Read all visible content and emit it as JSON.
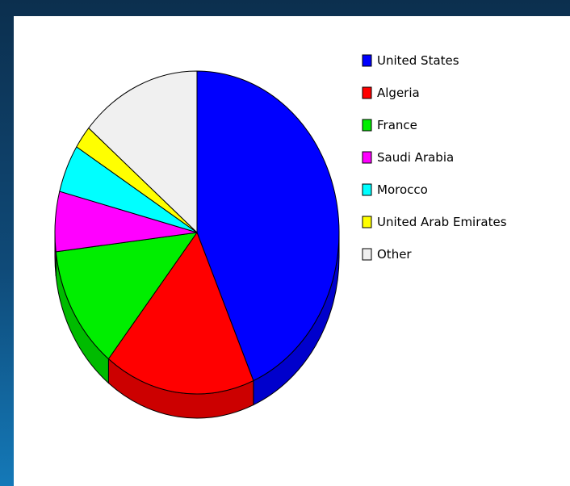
{
  "chart_data": {
    "type": "pie",
    "title": "",
    "legend_position": "right",
    "slices": [
      {
        "label": "United States",
        "value": 43.5,
        "color": "#0000ff",
        "side": "#0000cc"
      },
      {
        "label": "Algeria",
        "value": 17.2,
        "color": "#ff0000",
        "side": "#cc0000"
      },
      {
        "label": "France",
        "value": 12.4,
        "color": "#00ee00",
        "side": "#00bb00"
      },
      {
        "label": "Saudi Arabia",
        "value": 6.0,
        "color": "#ff00ff",
        "side": "#cc00cc"
      },
      {
        "label": "Morocco",
        "value": 4.8,
        "color": "#00ffff",
        "side": "#00cccc"
      },
      {
        "label": "United Arab Emirates",
        "value": 2.3,
        "color": "#ffff00",
        "side": "#cccc00"
      },
      {
        "label": "Other",
        "value": 13.8,
        "color": "#f0f0f0",
        "side": "#c8c8c8"
      }
    ]
  }
}
